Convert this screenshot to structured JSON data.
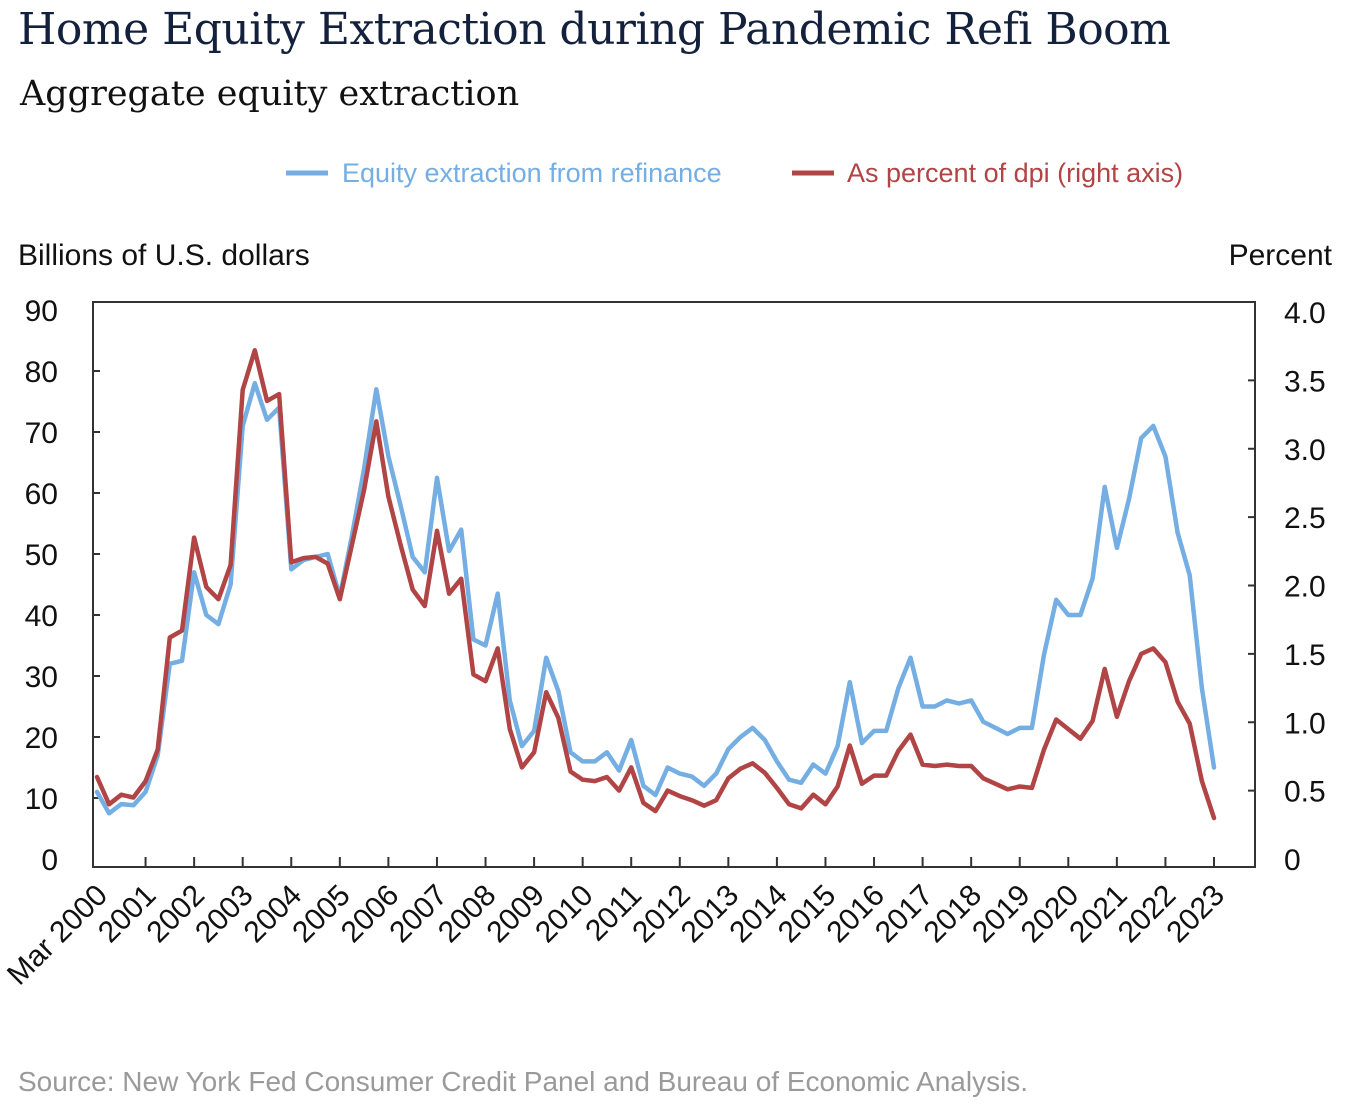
{
  "title": "Home Equity Extraction during Pandemic Refi Boom",
  "subtitle": "Aggregate equity extraction",
  "source": "Source: New York Fed Consumer Credit Panel and Bureau of Economic Analysis.",
  "colors": {
    "blue": "#74aee3",
    "red": "#b14444",
    "title": "#14213d"
  },
  "chart_data": {
    "type": "line",
    "left_axis": {
      "label": "Billions of U.S. dollars",
      "range": [
        0,
        90
      ],
      "ticks": [
        "0",
        "10",
        "20",
        "30",
        "40",
        "50",
        "60",
        "70",
        "80",
        "90"
      ]
    },
    "right_axis": {
      "label": "Percent",
      "range": [
        0,
        4.0
      ],
      "ticks": [
        "0",
        "0.5",
        "1.0",
        "1.5",
        "2.0",
        "2.5",
        "3.0",
        "3.5",
        "4.0"
      ]
    },
    "x_ticks": [
      "Mar 2000",
      "2001",
      "2002",
      "2003",
      "2004",
      "2005",
      "2006",
      "2007",
      "2008",
      "2009",
      "2010",
      "2011",
      "2012",
      "2013",
      "2014",
      "2015",
      "2016",
      "2017",
      "2018",
      "2019",
      "2020",
      "2021",
      "2022",
      "2023"
    ],
    "x_range": [
      2000.0,
      2023.0
    ],
    "legend_position": "top",
    "grid": false,
    "series": [
      {
        "name": "Equity extraction from refinance",
        "axis": "left",
        "color": "#74aee3",
        "points": [
          [
            2000.0,
            11
          ],
          [
            2000.25,
            7.5
          ],
          [
            2000.5,
            9
          ],
          [
            2000.75,
            8.8
          ],
          [
            2001.0,
            11
          ],
          [
            2001.25,
            17
          ],
          [
            2001.5,
            32
          ],
          [
            2001.75,
            32.5
          ],
          [
            2002.0,
            47
          ],
          [
            2002.25,
            40
          ],
          [
            2002.5,
            38.5
          ],
          [
            2002.75,
            45
          ],
          [
            2003.0,
            71
          ],
          [
            2003.25,
            78
          ],
          [
            2003.5,
            72
          ],
          [
            2003.75,
            74
          ],
          [
            2004.0,
            47.5
          ],
          [
            2004.25,
            49
          ],
          [
            2004.5,
            49.5
          ],
          [
            2004.75,
            50
          ],
          [
            2005.0,
            43
          ],
          [
            2005.25,
            53
          ],
          [
            2005.5,
            64
          ],
          [
            2005.75,
            77
          ],
          [
            2006.0,
            66
          ],
          [
            2006.25,
            58
          ],
          [
            2006.5,
            49.5
          ],
          [
            2006.75,
            47
          ],
          [
            2007.0,
            62.5
          ],
          [
            2007.25,
            50.5
          ],
          [
            2007.5,
            54
          ],
          [
            2007.75,
            36
          ],
          [
            2008.0,
            35
          ],
          [
            2008.25,
            43.5
          ],
          [
            2008.5,
            26
          ],
          [
            2008.75,
            18.5
          ],
          [
            2009.0,
            21
          ],
          [
            2009.25,
            33
          ],
          [
            2009.5,
            27.5
          ],
          [
            2009.75,
            17.5
          ],
          [
            2010.0,
            16
          ],
          [
            2010.25,
            16
          ],
          [
            2010.5,
            17.5
          ],
          [
            2010.75,
            14.5
          ],
          [
            2011.0,
            19.5
          ],
          [
            2011.25,
            12
          ],
          [
            2011.5,
            10.5
          ],
          [
            2011.75,
            15
          ],
          [
            2012.0,
            14
          ],
          [
            2012.25,
            13.5
          ],
          [
            2012.5,
            12
          ],
          [
            2012.75,
            14
          ],
          [
            2013.0,
            18
          ],
          [
            2013.25,
            20
          ],
          [
            2013.5,
            21.5
          ],
          [
            2013.75,
            19.5
          ],
          [
            2014.0,
            16
          ],
          [
            2014.25,
            13
          ],
          [
            2014.5,
            12.5
          ],
          [
            2014.75,
            15.5
          ],
          [
            2015.0,
            14
          ],
          [
            2015.25,
            18.5
          ],
          [
            2015.5,
            29
          ],
          [
            2015.75,
            19
          ],
          [
            2016.0,
            21
          ],
          [
            2016.25,
            21
          ],
          [
            2016.5,
            28
          ],
          [
            2016.75,
            33
          ],
          [
            2017.0,
            25
          ],
          [
            2017.25,
            25
          ],
          [
            2017.5,
            26
          ],
          [
            2017.75,
            25.5
          ],
          [
            2018.0,
            26
          ],
          [
            2018.25,
            22.5
          ],
          [
            2018.5,
            21.5
          ],
          [
            2018.75,
            20.5
          ],
          [
            2019.0,
            21.5
          ],
          [
            2019.25,
            21.5
          ],
          [
            2019.5,
            33.5
          ],
          [
            2019.75,
            42.5
          ],
          [
            2020.0,
            40
          ],
          [
            2020.25,
            40
          ],
          [
            2020.5,
            46
          ],
          [
            2020.75,
            61
          ],
          [
            2021.0,
            51
          ],
          [
            2021.25,
            59
          ],
          [
            2021.5,
            69
          ],
          [
            2021.75,
            71
          ],
          [
            2022.0,
            66
          ],
          [
            2022.25,
            53.5
          ],
          [
            2022.5,
            46.5
          ],
          [
            2022.75,
            28
          ],
          [
            2023.0,
            15
          ]
        ]
      },
      {
        "name": "As percent of dpi (right axis)",
        "axis": "right",
        "color": "#b14444",
        "points": [
          [
            2000.0,
            0.6
          ],
          [
            2000.25,
            0.4
          ],
          [
            2000.5,
            0.47
          ],
          [
            2000.75,
            0.45
          ],
          [
            2001.0,
            0.57
          ],
          [
            2001.25,
            0.8
          ],
          [
            2001.5,
            1.62
          ],
          [
            2001.75,
            1.67
          ],
          [
            2002.0,
            2.35
          ],
          [
            2002.25,
            1.99
          ],
          [
            2002.5,
            1.9
          ],
          [
            2002.75,
            2.15
          ],
          [
            2003.0,
            3.43
          ],
          [
            2003.25,
            3.72
          ],
          [
            2003.5,
            3.35
          ],
          [
            2003.75,
            3.4
          ],
          [
            2004.0,
            2.17
          ],
          [
            2004.25,
            2.2
          ],
          [
            2004.5,
            2.21
          ],
          [
            2004.75,
            2.16
          ],
          [
            2005.0,
            1.9
          ],
          [
            2005.25,
            2.3
          ],
          [
            2005.5,
            2.7
          ],
          [
            2005.75,
            3.2
          ],
          [
            2006.0,
            2.65
          ],
          [
            2006.25,
            2.3
          ],
          [
            2006.5,
            1.97
          ],
          [
            2006.75,
            1.85
          ],
          [
            2007.0,
            2.4
          ],
          [
            2007.25,
            1.94
          ],
          [
            2007.5,
            2.05
          ],
          [
            2007.75,
            1.35
          ],
          [
            2008.0,
            1.3
          ],
          [
            2008.25,
            1.54
          ],
          [
            2008.5,
            0.95
          ],
          [
            2008.75,
            0.67
          ],
          [
            2009.0,
            0.78
          ],
          [
            2009.25,
            1.22
          ],
          [
            2009.5,
            1.03
          ],
          [
            2009.75,
            0.64
          ],
          [
            2010.0,
            0.58
          ],
          [
            2010.25,
            0.57
          ],
          [
            2010.5,
            0.6
          ],
          [
            2010.75,
            0.5
          ],
          [
            2011.0,
            0.67
          ],
          [
            2011.25,
            0.41
          ],
          [
            2011.5,
            0.35
          ],
          [
            2011.75,
            0.5
          ],
          [
            2012.0,
            0.46
          ],
          [
            2012.25,
            0.43
          ],
          [
            2012.5,
            0.39
          ],
          [
            2012.75,
            0.43
          ],
          [
            2013.0,
            0.59
          ],
          [
            2013.25,
            0.66
          ],
          [
            2013.5,
            0.7
          ],
          [
            2013.75,
            0.63
          ],
          [
            2014.0,
            0.52
          ],
          [
            2014.25,
            0.4
          ],
          [
            2014.5,
            0.37
          ],
          [
            2014.75,
            0.47
          ],
          [
            2015.0,
            0.4
          ],
          [
            2015.25,
            0.53
          ],
          [
            2015.5,
            0.83
          ],
          [
            2015.75,
            0.55
          ],
          [
            2016.0,
            0.61
          ],
          [
            2016.25,
            0.61
          ],
          [
            2016.5,
            0.79
          ],
          [
            2016.75,
            0.91
          ],
          [
            2017.0,
            0.69
          ],
          [
            2017.25,
            0.68
          ],
          [
            2017.5,
            0.69
          ],
          [
            2017.75,
            0.68
          ],
          [
            2018.0,
            0.68
          ],
          [
            2018.25,
            0.59
          ],
          [
            2018.5,
            0.55
          ],
          [
            2018.75,
            0.51
          ],
          [
            2019.0,
            0.53
          ],
          [
            2019.25,
            0.52
          ],
          [
            2019.5,
            0.8
          ],
          [
            2019.75,
            1.02
          ],
          [
            2020.0,
            0.95
          ],
          [
            2020.25,
            0.88
          ],
          [
            2020.5,
            1.01
          ],
          [
            2020.75,
            1.39
          ],
          [
            2021.0,
            1.04
          ],
          [
            2021.25,
            1.3
          ],
          [
            2021.5,
            1.5
          ],
          [
            2021.75,
            1.54
          ],
          [
            2022.0,
            1.44
          ],
          [
            2022.25,
            1.15
          ],
          [
            2022.5,
            0.99
          ],
          [
            2022.75,
            0.57
          ],
          [
            2023.0,
            0.3
          ]
        ]
      }
    ]
  }
}
